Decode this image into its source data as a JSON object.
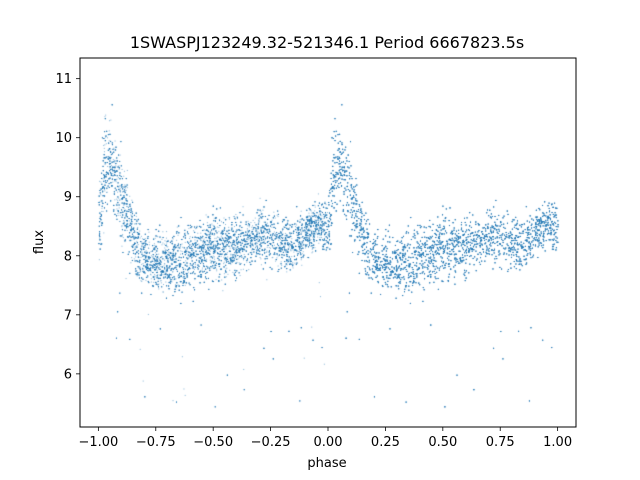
{
  "chart_data": {
    "type": "scatter",
    "title": "1SWASPJ123249.32-521346.1 Period 6667823.5s",
    "xlabel": "phase",
    "ylabel": "flux",
    "xlim": [
      -1.08,
      1.08
    ],
    "ylim": [
      5.1,
      11.35
    ],
    "xticks": [
      -1.0,
      -0.75,
      -0.5,
      -0.25,
      0.0,
      0.25,
      0.5,
      0.75,
      1.0
    ],
    "xtick_labels": [
      "−1.00",
      "−0.75",
      "−0.50",
      "−0.25",
      "0.00",
      "0.25",
      "0.50",
      "0.75",
      "1.00"
    ],
    "yticks": [
      6,
      7,
      8,
      9,
      10,
      11
    ],
    "ytick_labels": [
      "6",
      "7",
      "8",
      "9",
      "10",
      "11"
    ],
    "grid": false,
    "marker_color": "#1f77b4",
    "profile": {
      "phase": [
        0.0,
        0.03,
        0.06,
        0.09,
        0.12,
        0.15,
        0.18,
        0.21,
        0.25,
        0.3,
        0.35,
        0.4,
        0.45,
        0.5,
        0.55,
        0.6,
        0.65,
        0.7,
        0.75,
        0.8,
        0.85,
        0.9,
        0.95,
        1.0
      ],
      "flux": [
        8.55,
        9.6,
        9.5,
        9.1,
        8.7,
        8.3,
        8.05,
        7.95,
        7.9,
        7.85,
        7.9,
        8.0,
        8.1,
        8.15,
        8.15,
        8.2,
        8.25,
        8.35,
        8.3,
        8.2,
        8.25,
        8.4,
        8.55,
        8.55
      ],
      "scatter": [
        0.75,
        0.85,
        0.8,
        0.75,
        0.7,
        0.65,
        0.55,
        0.5,
        0.5,
        0.5,
        0.55,
        0.55,
        0.55,
        0.55,
        0.55,
        0.5,
        0.5,
        0.5,
        0.5,
        0.5,
        0.45,
        0.45,
        0.45,
        0.5
      ]
    },
    "n_points_per_cycle": 9000
  }
}
